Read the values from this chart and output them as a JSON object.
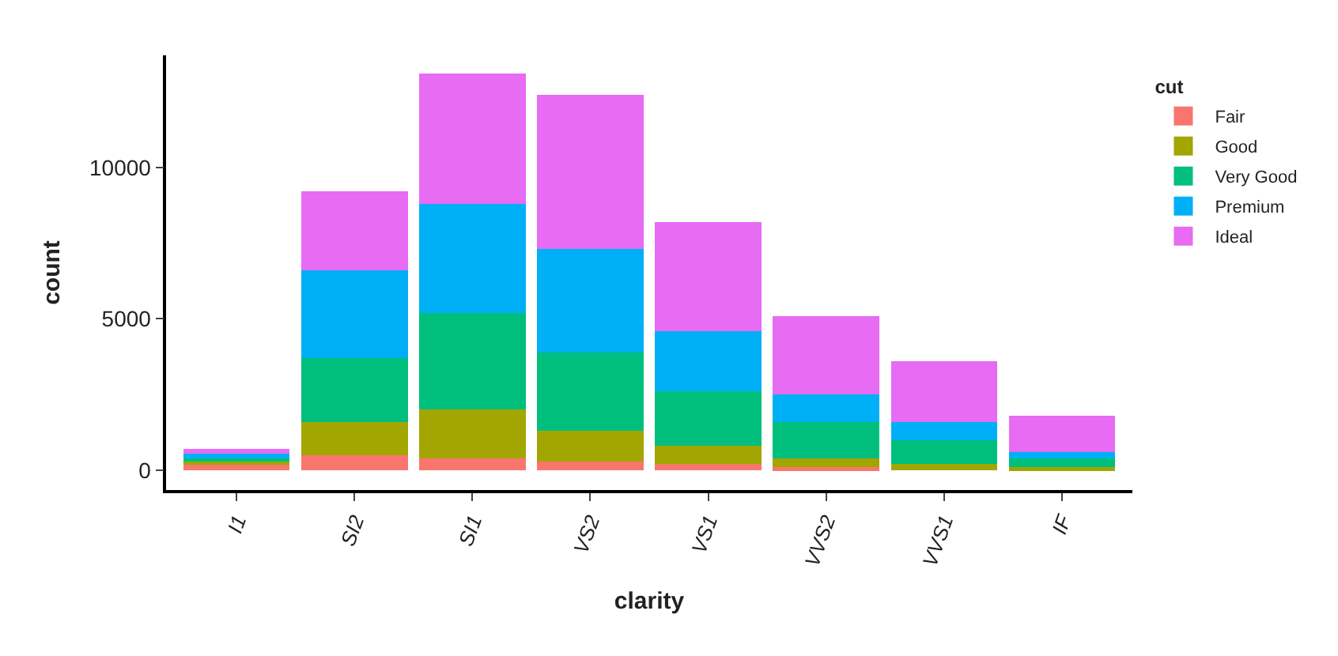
{
  "chart_data": {
    "type": "bar",
    "stacked": true,
    "xlabel": "clarity",
    "ylabel": "count",
    "legend_title": "cut",
    "legend": "right",
    "categories": [
      "I1",
      "SI2",
      "SI1",
      "VS2",
      "VS1",
      "VVS2",
      "VVS1",
      "IF"
    ],
    "ylim": [
      -650,
      13700
    ],
    "yticks": [
      0,
      5000,
      10000
    ],
    "series": [
      {
        "name": "Fair",
        "color": "#f8766d",
        "values": [
          200,
          500,
          400,
          300,
          200,
          100,
          0,
          0
        ]
      },
      {
        "name": "Good",
        "color": "#a3a500",
        "values": [
          100,
          1100,
          1600,
          1000,
          600,
          300,
          200,
          100
        ]
      },
      {
        "name": "Very Good",
        "color": "#00bf7d",
        "values": [
          100,
          2100,
          3200,
          2600,
          1800,
          1200,
          800,
          300
        ]
      },
      {
        "name": "Premium",
        "color": "#00b0f6",
        "values": [
          200,
          2900,
          3600,
          3400,
          2000,
          900,
          600,
          200
        ]
      },
      {
        "name": "Ideal",
        "color": "#e76bf3",
        "values": [
          100,
          2600,
          4300,
          5100,
          3600,
          2600,
          2000,
          1200
        ]
      }
    ]
  }
}
